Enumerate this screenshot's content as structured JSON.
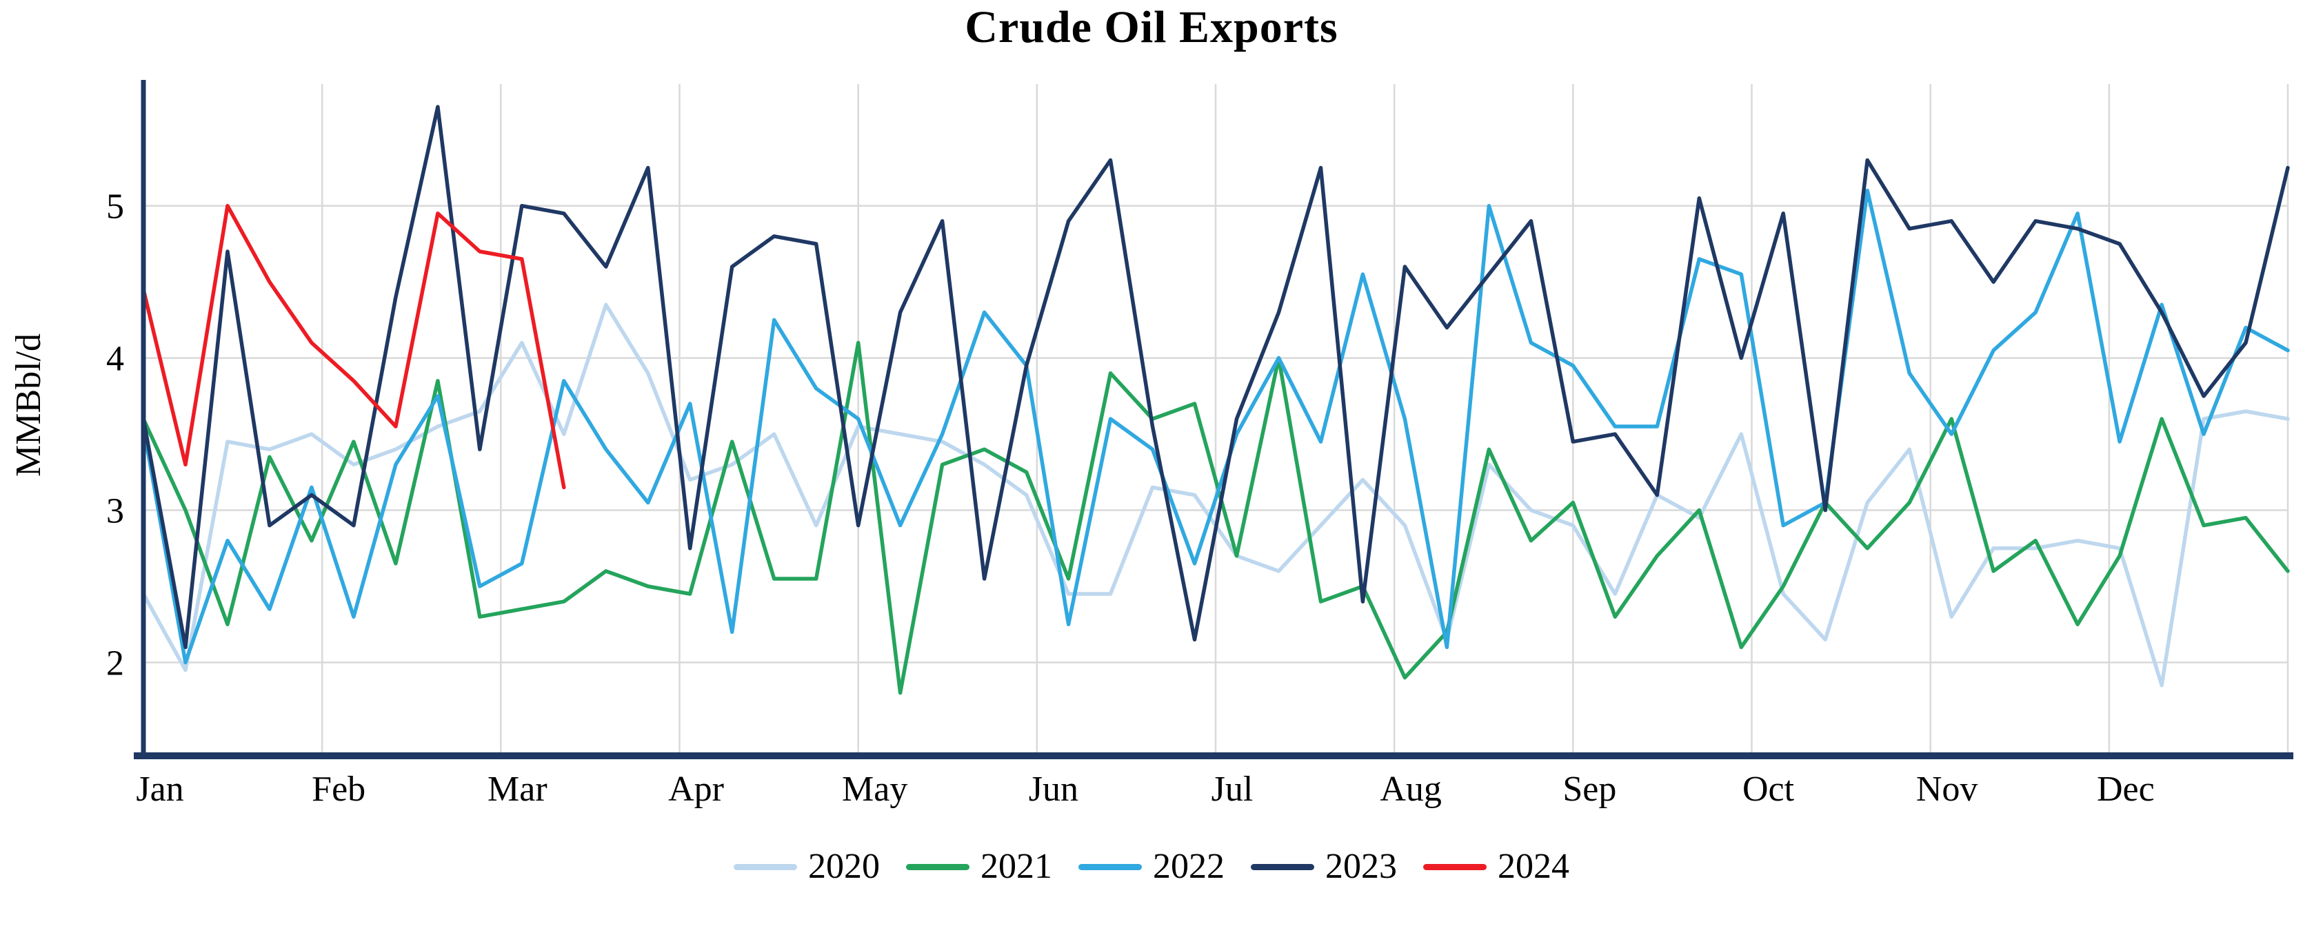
{
  "chart_data": {
    "type": "line",
    "title": "Crude Oil Exports",
    "xlabel": "",
    "ylabel": "MMBbl/d",
    "x_unit": "weekly observations across one year",
    "x_tick_labels": [
      "Jan",
      "Feb",
      "Mar",
      "Apr",
      "May",
      "Jun",
      "Jul",
      "Aug",
      "Sep",
      "Oct",
      "Nov",
      "Dec"
    ],
    "yticks": [
      2,
      3,
      4,
      5
    ],
    "ylim": [
      1.4,
      5.8
    ],
    "grid": true,
    "grid_color": "#D9D9D9",
    "axis_color": "#1F3864",
    "legend_position": "bottom",
    "series": [
      {
        "name": "2020",
        "color": "#BDD7EE",
        "values": [
          2.45,
          1.95,
          3.45,
          3.4,
          3.5,
          3.3,
          3.4,
          3.55,
          3.65,
          4.1,
          3.5,
          4.35,
          3.9,
          3.2,
          3.3,
          3.5,
          2.9,
          3.55,
          3.5,
          3.45,
          3.3,
          3.1,
          2.45,
          2.45,
          3.15,
          3.1,
          2.7,
          2.6,
          2.9,
          3.2,
          2.9,
          2.15,
          3.3,
          3.0,
          2.9,
          2.45,
          3.1,
          2.95,
          3.5,
          2.45,
          2.15,
          3.05,
          3.4,
          2.3,
          2.75,
          2.75,
          2.8,
          2.75,
          1.85,
          3.6,
          3.65,
          3.6
        ]
      },
      {
        "name": "2021",
        "color": "#24A45C",
        "values": [
          3.6,
          3.0,
          2.25,
          3.35,
          2.8,
          3.45,
          2.65,
          3.85,
          2.3,
          2.35,
          2.4,
          2.6,
          2.5,
          2.45,
          3.45,
          2.55,
          2.55,
          4.1,
          1.8,
          3.3,
          3.4,
          3.25,
          2.55,
          3.9,
          3.6,
          3.7,
          2.7,
          4.0,
          2.4,
          2.5,
          1.9,
          2.2,
          3.4,
          2.8,
          3.05,
          2.3,
          2.7,
          3.0,
          2.1,
          2.5,
          3.05,
          2.75,
          3.05,
          3.6,
          2.6,
          2.8,
          2.25,
          2.7,
          3.6,
          2.9,
          2.95,
          2.6
        ]
      },
      {
        "name": "2022",
        "color": "#30A8E0",
        "values": [
          3.55,
          2.0,
          2.8,
          2.35,
          3.15,
          2.3,
          3.3,
          3.75,
          2.5,
          2.65,
          3.85,
          3.4,
          3.05,
          3.7,
          2.2,
          4.25,
          3.8,
          3.6,
          2.9,
          3.5,
          4.3,
          3.95,
          2.25,
          3.6,
          3.4,
          2.65,
          3.5,
          4.0,
          3.45,
          4.55,
          3.6,
          2.1,
          5.0,
          4.1,
          3.95,
          3.55,
          3.55,
          4.65,
          4.55,
          2.9,
          3.05,
          5.1,
          3.9,
          3.5,
          4.05,
          4.3,
          4.95,
          3.45,
          4.35,
          3.5,
          4.2,
          4.05
        ]
      },
      {
        "name": "2023",
        "color": "#1F3864",
        "values": [
          3.6,
          2.1,
          4.7,
          2.9,
          3.1,
          2.9,
          4.4,
          5.65,
          3.4,
          5.0,
          4.95,
          4.6,
          5.25,
          2.75,
          4.6,
          4.8,
          4.75,
          2.9,
          4.3,
          4.9,
          2.55,
          3.95,
          4.9,
          5.3,
          3.55,
          2.15,
          3.6,
          4.3,
          5.25,
          2.4,
          4.6,
          4.2,
          4.55,
          4.9,
          3.45,
          3.5,
          3.1,
          5.05,
          4.0,
          4.95,
          3.0,
          5.3,
          4.85,
          4.9,
          4.5,
          4.9,
          4.85,
          4.75,
          4.3,
          3.75,
          4.1,
          5.25
        ]
      },
      {
        "name": "2024",
        "color": "#ED1C24",
        "values": [
          4.45,
          3.3,
          5.0,
          4.5,
          4.1,
          3.85,
          3.55,
          4.95,
          4.7,
          4.65,
          3.15
        ]
      }
    ]
  }
}
